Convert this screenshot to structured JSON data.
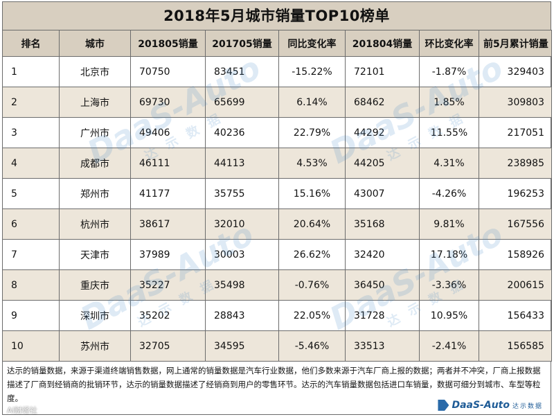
{
  "title": "2018年5月城市销量TOP10榜单",
  "columns": [
    "排名",
    "城市",
    "201805销量",
    "201705销量",
    "同比变化率",
    "201804销量",
    "环比变化率",
    "前5月累计销量"
  ],
  "rows": [
    {
      "rank": "1",
      "city": "北京市",
      "m201805": "70750",
      "m201705": "83451",
      "yoy": "-15.22%",
      "m201804": "72101",
      "mom": "-1.87%",
      "ytd": "329403"
    },
    {
      "rank": "2",
      "city": "上海市",
      "m201805": "69730",
      "m201705": "65699",
      "yoy": "6.14%",
      "m201804": "68462",
      "mom": "1.85%",
      "ytd": "309803"
    },
    {
      "rank": "3",
      "city": "广州市",
      "m201805": "49406",
      "m201705": "40236",
      "yoy": "22.79%",
      "m201804": "44292",
      "mom": "11.55%",
      "ytd": "217051"
    },
    {
      "rank": "4",
      "city": "成都市",
      "m201805": "46111",
      "m201705": "44113",
      "yoy": "4.53%",
      "m201804": "44205",
      "mom": "4.31%",
      "ytd": "238985"
    },
    {
      "rank": "5",
      "city": "郑州市",
      "m201805": "41177",
      "m201705": "35755",
      "yoy": "15.16%",
      "m201804": "43007",
      "mom": "-4.26%",
      "ytd": "196253"
    },
    {
      "rank": "6",
      "city": "杭州市",
      "m201805": "38617",
      "m201705": "32010",
      "yoy": "20.64%",
      "m201804": "35168",
      "mom": "9.81%",
      "ytd": "167556"
    },
    {
      "rank": "7",
      "city": "天津市",
      "m201805": "37989",
      "m201705": "30003",
      "yoy": "26.62%",
      "m201804": "32420",
      "mom": "17.18%",
      "ytd": "158926"
    },
    {
      "rank": "8",
      "city": "重庆市",
      "m201805": "35227",
      "m201705": "35498",
      "yoy": "-0.76%",
      "m201804": "36450",
      "mom": "-3.36%",
      "ytd": "200615"
    },
    {
      "rank": "9",
      "city": "深圳市",
      "m201805": "35202",
      "m201705": "28843",
      "yoy": "22.05%",
      "m201804": "31728",
      "mom": "10.95%",
      "ytd": "156433"
    },
    {
      "rank": "10",
      "city": "苏州市",
      "m201805": "32705",
      "m201705": "34595",
      "yoy": "-5.46%",
      "m201804": "33513",
      "mom": "-2.41%",
      "ytd": "156585"
    }
  ],
  "footnote": "达示的销量数据，来源于渠道终端销售数据，网上通常的销量数据是汽车行业数据，他们多数来源于汽车厂商上报的数据；两者并不冲突，厂商上报数据描述了厂商到经销商的批销环节，达示的销量数据描述了经销商到用户的零售环节。达示的汽车销量数据包括进口车销量，数据可细分到城市、车型等粒度。",
  "brand": {
    "name": "DaaS-Auto",
    "sub": "达示数据",
    "color": "#1f5c97"
  },
  "watermark": {
    "text": "DaaS-Auto",
    "sub": "达示数据"
  },
  "credit": "AI财经社",
  "colors": {
    "header_bg": "#d8cfc0",
    "alt_row_bg": "#ede6da",
    "border": "#6b6b6b"
  }
}
